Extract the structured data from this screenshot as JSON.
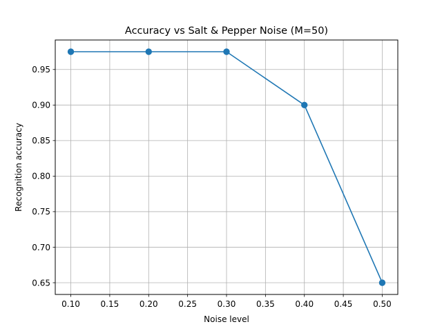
{
  "chart_data": {
    "type": "line",
    "title": "Accuracy vs Salt & Pepper Noise (M=50)",
    "xlabel": "Noise level",
    "ylabel": "Recognition accuracy",
    "x": [
      0.1,
      0.2,
      0.3,
      0.4,
      0.5
    ],
    "series": [
      {
        "values": [
          0.975,
          0.975,
          0.975,
          0.9,
          0.65
        ]
      }
    ],
    "xlim": [
      0.08,
      0.52
    ],
    "ylim": [
      0.6335,
      0.9915
    ],
    "xticks": [
      0.1,
      0.15,
      0.2,
      0.25,
      0.3,
      0.35,
      0.4,
      0.45,
      0.5
    ],
    "xtick_labels": [
      "0.10",
      "0.15",
      "0.20",
      "0.25",
      "0.30",
      "0.35",
      "0.40",
      "0.45",
      "0.50"
    ],
    "yticks": [
      0.65,
      0.7,
      0.75,
      0.8,
      0.85,
      0.9,
      0.95
    ],
    "ytick_labels": [
      "0.65",
      "0.70",
      "0.75",
      "0.80",
      "0.85",
      "0.90",
      "0.95"
    ],
    "grid": true,
    "marker": "circle",
    "line_color": "#1f77b4",
    "grid_color": "#b0b0b0"
  }
}
